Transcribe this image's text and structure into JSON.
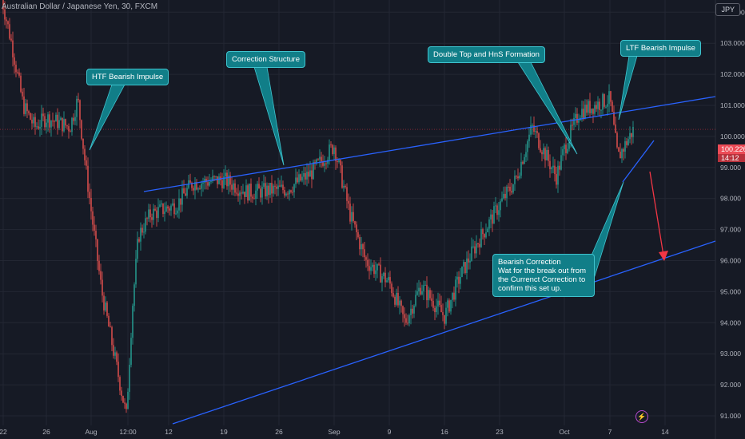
{
  "header": {
    "title": "Australian Dollar / Japanese Yen, 30, FXCM",
    "symbol_badge": "JPY"
  },
  "price_scale": {
    "current_price": "100.226",
    "countdown": "14:12"
  },
  "annotations": {
    "htf": "HTF Bearish Impulse",
    "correction": "Correction Structure",
    "double_top": "Double Top and HnS Formation",
    "ltf": "LTF Bearish Impulse",
    "bearish_title": "Bearish Correction",
    "bearish_body": "Wat for the break out from the Currenct Correction to confirm this set up."
  },
  "colors": {
    "background": "#161a25",
    "up_candle": "#26a69a",
    "down_candle": "#ef5350",
    "trendline": "#2962ff",
    "arrow": "#f23645",
    "note_fill": "#117e88",
    "grid": "#232733",
    "axis_text": "#b2b5be"
  },
  "chart_data": {
    "type": "candlestick",
    "title": "Australian Dollar / Japanese Yen, 30, FXCM",
    "ylim": [
      90.85,
      104.7
    ],
    "y_ticks": [
      91,
      92,
      93,
      94,
      95,
      96,
      97,
      98,
      99,
      100,
      101,
      102,
      103,
      104
    ],
    "y_tick_labels": [
      "91.000",
      "92.000",
      "93.000",
      "94.000",
      "95.000",
      "96.000",
      "97.000",
      "98.000",
      "99.000",
      "100.000",
      "101.000",
      "102.000",
      "103.000",
      "104.000"
    ],
    "x_tick_labels": [
      "22",
      "26",
      "Aug",
      "12:00",
      "12",
      "19",
      "26",
      "Sep",
      "9",
      "16",
      "23",
      "Oct",
      "7",
      "14"
    ],
    "grid": true,
    "price_path": [
      {
        "d": "Jul 22",
        "p": 104.7
      },
      {
        "d": "Jul 23",
        "p": 103.0
      },
      {
        "d": "Jul 24",
        "p": 101.0
      },
      {
        "d": "Jul 25",
        "p": 100.3
      },
      {
        "d": "Jul 26",
        "p": 100.6
      },
      {
        "d": "Jul 29",
        "p": 100.3
      },
      {
        "d": "Jul 30",
        "p": 101.2
      },
      {
        "d": "Jul 31",
        "p": 99.0
      },
      {
        "d": "Aug 1",
        "p": 97.0
      },
      {
        "d": "Aug 2",
        "p": 95.0
      },
      {
        "d": "Aug 5",
        "p": 91.0
      },
      {
        "d": "Aug 6",
        "p": 94.5
      },
      {
        "d": "Aug 7",
        "p": 96.8
      },
      {
        "d": "Aug 9",
        "p": 97.5
      },
      {
        "d": "Aug 13",
        "p": 97.8
      },
      {
        "d": "Aug 15",
        "p": 98.5
      },
      {
        "d": "Aug 19",
        "p": 98.6
      },
      {
        "d": "Aug 22",
        "p": 98.2
      },
      {
        "d": "Aug 27",
        "p": 98.3
      },
      {
        "d": "Aug 30",
        "p": 98.8
      },
      {
        "d": "Sep 2",
        "p": 99.7
      },
      {
        "d": "Sep 4",
        "p": 97.5
      },
      {
        "d": "Sep 6",
        "p": 96.0
      },
      {
        "d": "Sep 9",
        "p": 95.3
      },
      {
        "d": "Sep 11",
        "p": 94.0
      },
      {
        "d": "Sep 13",
        "p": 95.2
      },
      {
        "d": "Sep 16",
        "p": 94.2
      },
      {
        "d": "Sep 18",
        "p": 95.5
      },
      {
        "d": "Sep 20",
        "p": 96.5
      },
      {
        "d": "Sep 23",
        "p": 97.8
      },
      {
        "d": "Sep 25",
        "p": 98.6
      },
      {
        "d": "Sep 27",
        "p": 100.3
      },
      {
        "d": "Sep 30",
        "p": 98.7
      },
      {
        "d": "Oct 1",
        "p": 99.6
      },
      {
        "d": "Oct 3",
        "p": 100.8
      },
      {
        "d": "Oct 7",
        "p": 101.2
      },
      {
        "d": "Oct 8",
        "p": 99.3
      },
      {
        "d": "Oct 10",
        "p": 100.23
      }
    ]
  }
}
